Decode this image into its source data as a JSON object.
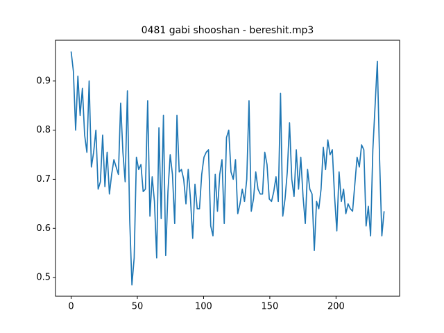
{
  "chart_data": {
    "type": "line",
    "title": "0481 gabi shooshan - bereshit.mp3",
    "x": [
      0,
      1.7,
      3.4,
      5.1,
      6.8,
      8.5,
      10.2,
      11.9,
      13.6,
      15.3,
      17,
      18.7,
      20.4,
      22.1,
      23.8,
      25.5,
      27.2,
      28.9,
      30.6,
      32.3,
      34,
      35.7,
      37.4,
      39.1,
      40.8,
      42.5,
      44.2,
      45.9,
      47.6,
      49.3,
      51,
      52.7,
      54.4,
      56.1,
      57.8,
      59.5,
      61.2,
      62.9,
      64.6,
      66.3,
      68,
      69.7,
      71.4,
      73.1,
      74.8,
      76.5,
      78.2,
      79.9,
      81.6,
      83.3,
      85,
      86.7,
      88.4,
      90.1,
      91.8,
      93.5,
      95.2,
      96.9,
      98.6,
      100.3,
      102,
      103.7,
      105.4,
      107.1,
      108.8,
      110.5,
      112.2,
      113.9,
      115.6,
      117.3,
      119,
      120.7,
      122.4,
      124.1,
      125.8,
      127.5,
      129.2,
      130.9,
      132.6,
      134.3,
      136,
      137.7,
      139.4,
      141.1,
      142.8,
      144.5,
      146.2,
      147.9,
      149.6,
      151.3,
      153,
      154.7,
      156.4,
      158.1,
      159.8,
      161.5,
      163.2,
      164.9,
      166.6,
      168.3,
      170,
      171.7,
      173.4,
      175.1,
      176.8,
      178.5,
      180.2,
      181.9,
      183.6,
      185.3,
      187,
      188.7,
      190.4,
      192.1,
      193.8,
      195.5,
      197.2,
      198.9,
      200.6,
      202.3,
      204,
      205.7,
      207.4,
      209.1,
      210.8,
      212.5,
      214.2,
      215.9,
      217.6,
      219.3,
      221,
      222.7,
      224.4,
      226.1,
      227.8,
      229.5,
      231.2,
      232.9,
      234.6,
      236.3
    ],
    "series": [
      {
        "color": "#1f77b4",
        "values": [
          0.96,
          0.92,
          0.8,
          0.91,
          0.83,
          0.885,
          0.79,
          0.755,
          0.9,
          0.725,
          0.755,
          0.8,
          0.68,
          0.695,
          0.79,
          0.685,
          0.755,
          0.67,
          0.71,
          0.74,
          0.725,
          0.71,
          0.855,
          0.755,
          0.695,
          0.88,
          0.62,
          0.485,
          0.54,
          0.745,
          0.72,
          0.73,
          0.675,
          0.68,
          0.86,
          0.625,
          0.705,
          0.655,
          0.54,
          0.805,
          0.62,
          0.83,
          0.545,
          0.675,
          0.75,
          0.71,
          0.61,
          0.83,
          0.715,
          0.72,
          0.7,
          0.65,
          0.72,
          0.66,
          0.58,
          0.69,
          0.64,
          0.64,
          0.71,
          0.745,
          0.755,
          0.76,
          0.605,
          0.585,
          0.71,
          0.635,
          0.71,
          0.74,
          0.61,
          0.785,
          0.8,
          0.715,
          0.7,
          0.74,
          0.63,
          0.65,
          0.68,
          0.655,
          0.7,
          0.86,
          0.635,
          0.66,
          0.715,
          0.68,
          0.67,
          0.67,
          0.755,
          0.73,
          0.66,
          0.655,
          0.675,
          0.705,
          0.655,
          0.875,
          0.625,
          0.66,
          0.715,
          0.815,
          0.7,
          0.665,
          0.76,
          0.68,
          0.745,
          0.665,
          0.61,
          0.72,
          0.68,
          0.67,
          0.555,
          0.655,
          0.64,
          0.68,
          0.765,
          0.72,
          0.78,
          0.75,
          0.76,
          0.665,
          0.595,
          0.715,
          0.655,
          0.68,
          0.63,
          0.65,
          0.64,
          0.635,
          0.69,
          0.745,
          0.725,
          0.77,
          0.76,
          0.605,
          0.645,
          0.585,
          0.76,
          0.85,
          0.94,
          0.74,
          0.585,
          0.635
        ]
      }
    ],
    "xlim": [
      -11.8,
      248
    ],
    "ylim": [
      0.462,
      0.983
    ],
    "xticks": [
      0,
      50,
      100,
      150,
      200
    ],
    "yticks": [
      0.5,
      0.6,
      0.7,
      0.8,
      0.9
    ]
  }
}
